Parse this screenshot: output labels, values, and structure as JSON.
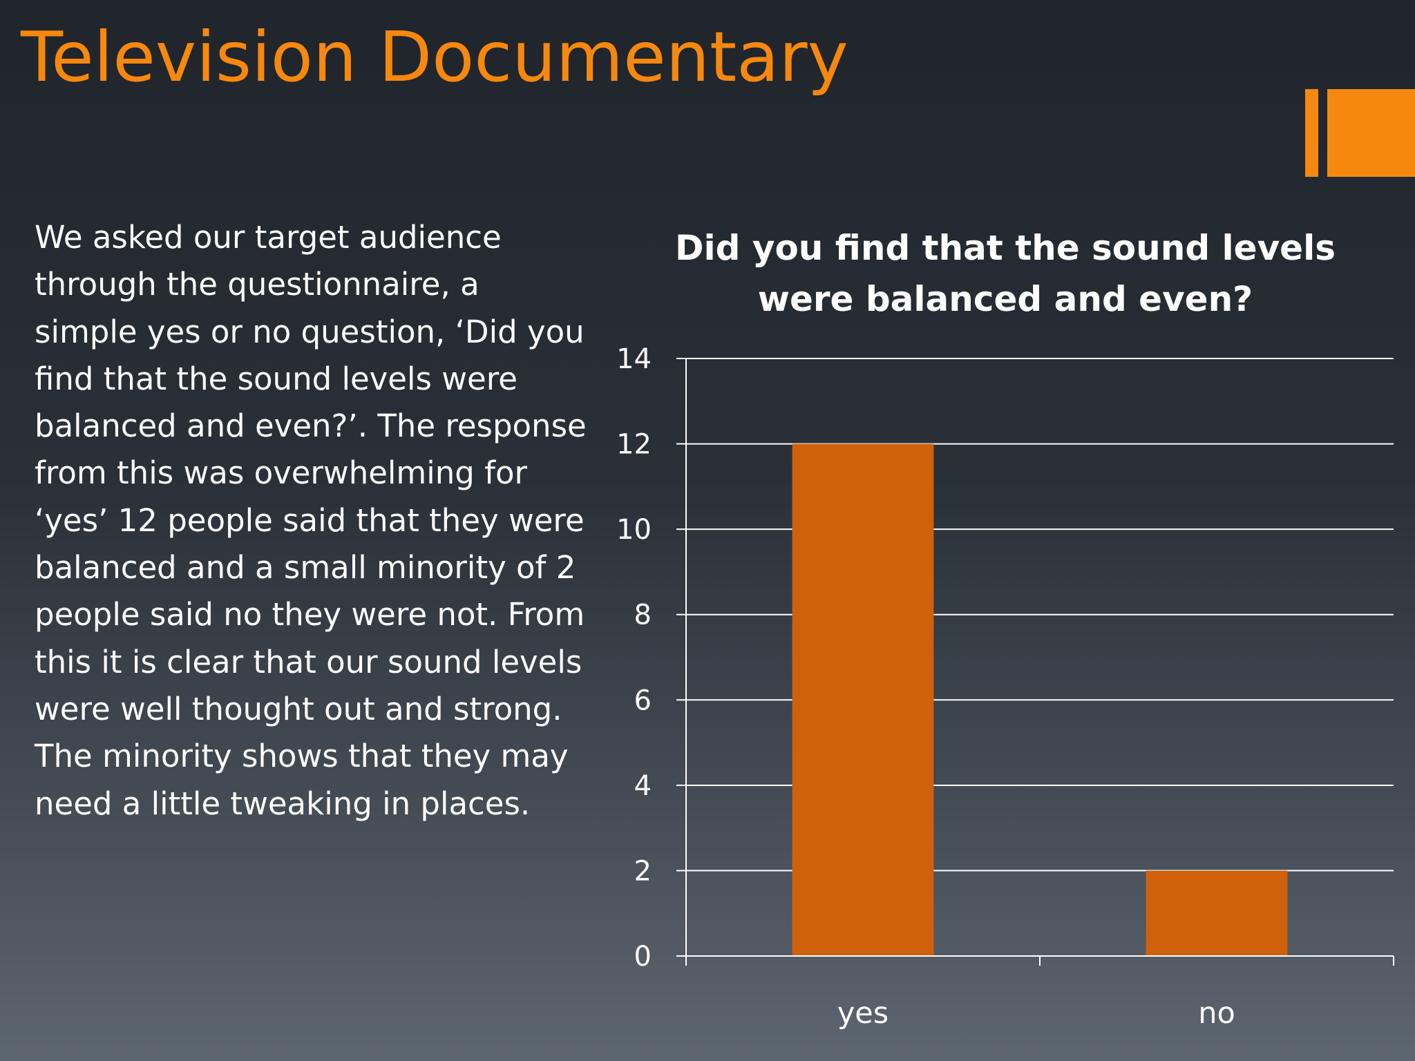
{
  "slide": {
    "title": "Television Documentary",
    "body": "We asked our target audience through the questionnaire, a simple yes or no question, ‘Did you find that the sound levels were balanced and even?’. The response from this was overwhelming for ‘yes’ 12 people said that they were balanced and a small minority of 2 people said no they were not. From this it is clear that our sound levels were well thought out and strong. The minority shows that they may need a little tweaking in places."
  },
  "colors": {
    "accent": "#f6880f",
    "bar": "#d0610c",
    "text": "#ffffff"
  },
  "chart_data": {
    "type": "bar",
    "title": "Did you find that the sound levels were balanced and even?",
    "categories": [
      "yes",
      "no"
    ],
    "values": [
      12,
      2
    ],
    "xlabel": "",
    "ylabel": "",
    "ylim": [
      0,
      14
    ],
    "yticks": [
      0,
      2,
      4,
      6,
      8,
      10,
      12,
      14
    ],
    "grid": true,
    "legend": "none"
  }
}
